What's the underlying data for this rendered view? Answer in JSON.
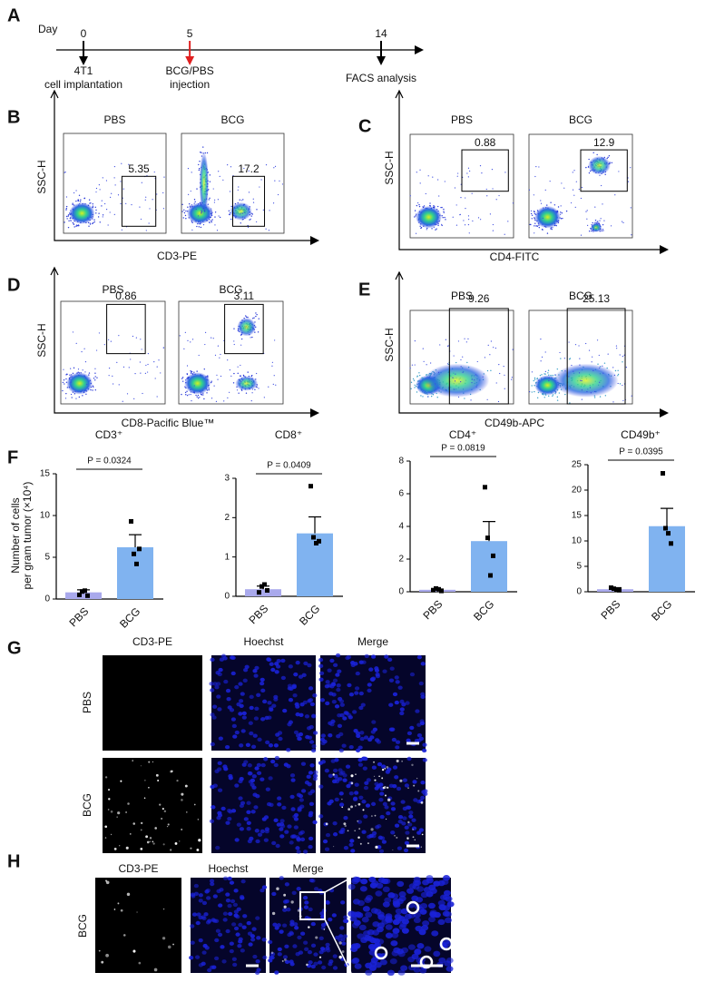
{
  "panel_labels": [
    "A",
    "B",
    "C",
    "D",
    "E",
    "F",
    "G",
    "H"
  ],
  "timeline": {
    "axis_title": "Day",
    "events": [
      {
        "day": 0,
        "label": [
          "4T1",
          "cell implantation"
        ]
      },
      {
        "day": 5,
        "label": [
          "BCG/PBS",
          "injection"
        ]
      },
      {
        "day": 14,
        "label": [
          "FACS analysis"
        ]
      }
    ]
  },
  "flow_panels": [
    {
      "y_label": "SSC-H",
      "x_label": "CD3-PE",
      "groups": [
        "PBS",
        "BCG"
      ],
      "gates": [
        "5.35",
        "17.2"
      ]
    },
    {
      "y_label": "SSC-H",
      "x_label": "CD4-FITC",
      "groups": [
        "PBS",
        "BCG"
      ],
      "gates": [
        "0.88",
        "12.9"
      ]
    },
    {
      "y_label": "SSC-H",
      "x_label": "CD8-Pacific Blue™",
      "groups": [
        "PBS",
        "BCG"
      ],
      "gates": [
        "0.86",
        "3.11"
      ]
    },
    {
      "y_label": "SSC-H",
      "x_label": "CD49b-APC",
      "groups": [
        "PBS",
        "BCG"
      ],
      "gates": [
        "9.26",
        "25.13"
      ]
    }
  ],
  "chart_data": [
    {
      "type": "bar",
      "title": "CD3⁺",
      "ylabel": [
        "Number of cells",
        "per gram tumor (×10⁴)"
      ],
      "annotation": "P = 0.0324",
      "categories": [
        "PBS",
        "BCG"
      ],
      "values": [
        0.8,
        6.2
      ],
      "errors": [
        0.3,
        1.5
      ],
      "colors": [
        "#a9a9ec",
        "#80b3f0"
      ],
      "points": [
        [
          0.5,
          0.9,
          1.0,
          0.4
        ],
        [
          9.3,
          5.4,
          4.2,
          6.0
        ]
      ],
      "ylim": [
        0,
        15
      ],
      "yticks": [
        0,
        5,
        10,
        15
      ]
    },
    {
      "type": "bar",
      "title": "CD8⁺",
      "annotation": "P = 0.0409",
      "categories": [
        "PBS",
        "BCG"
      ],
      "values": [
        0.18,
        1.6
      ],
      "errors": [
        0.08,
        0.42
      ],
      "colors": [
        "#a9a9ec",
        "#80b3f0"
      ],
      "points": [
        [
          0.1,
          0.25,
          0.3,
          0.15
        ],
        [
          2.8,
          1.5,
          1.35,
          1.4
        ]
      ],
      "ylim": [
        0,
        3
      ],
      "yticks": [
        0,
        1,
        2,
        3
      ]
    },
    {
      "type": "bar",
      "title": "CD4⁺",
      "annotation": "P = 0.0819",
      "categories": [
        "PBS",
        "BCG"
      ],
      "values": [
        0.12,
        3.1
      ],
      "errors": [
        0.05,
        1.2
      ],
      "colors": [
        "#a9a9ec",
        "#80b3f0"
      ],
      "points": [
        [
          0.1,
          0.2,
          0.15,
          0.05
        ],
        [
          6.4,
          3.3,
          1.0,
          2.2
        ]
      ],
      "ylim": [
        0,
        8
      ],
      "yticks": [
        0,
        2,
        4,
        6,
        8
      ]
    },
    {
      "type": "bar",
      "title": "CD49b⁺",
      "annotation": "P = 0.0395",
      "categories": [
        "PBS",
        "BCG"
      ],
      "values": [
        0.5,
        12.9
      ],
      "errors": [
        0.3,
        3.5
      ],
      "colors": [
        "#a9a9ec",
        "#80b3f0"
      ],
      "points": [
        [
          0.8,
          0.6,
          0.4,
          0.3
        ],
        [
          23.3,
          12.5,
          11.5,
          9.5
        ]
      ],
      "ylim": [
        0,
        25
      ],
      "yticks": [
        0,
        5,
        10,
        15,
        20,
        25
      ]
    }
  ],
  "microscopy": {
    "G": {
      "columns": [
        "CD3-PE",
        "Hoechst",
        "Merge"
      ],
      "rows": [
        "PBS",
        "BCG"
      ]
    },
    "H": {
      "columns": [
        "CD3-PE",
        "Hoechst",
        "Merge"
      ],
      "rows": [
        "BCG"
      ]
    }
  }
}
